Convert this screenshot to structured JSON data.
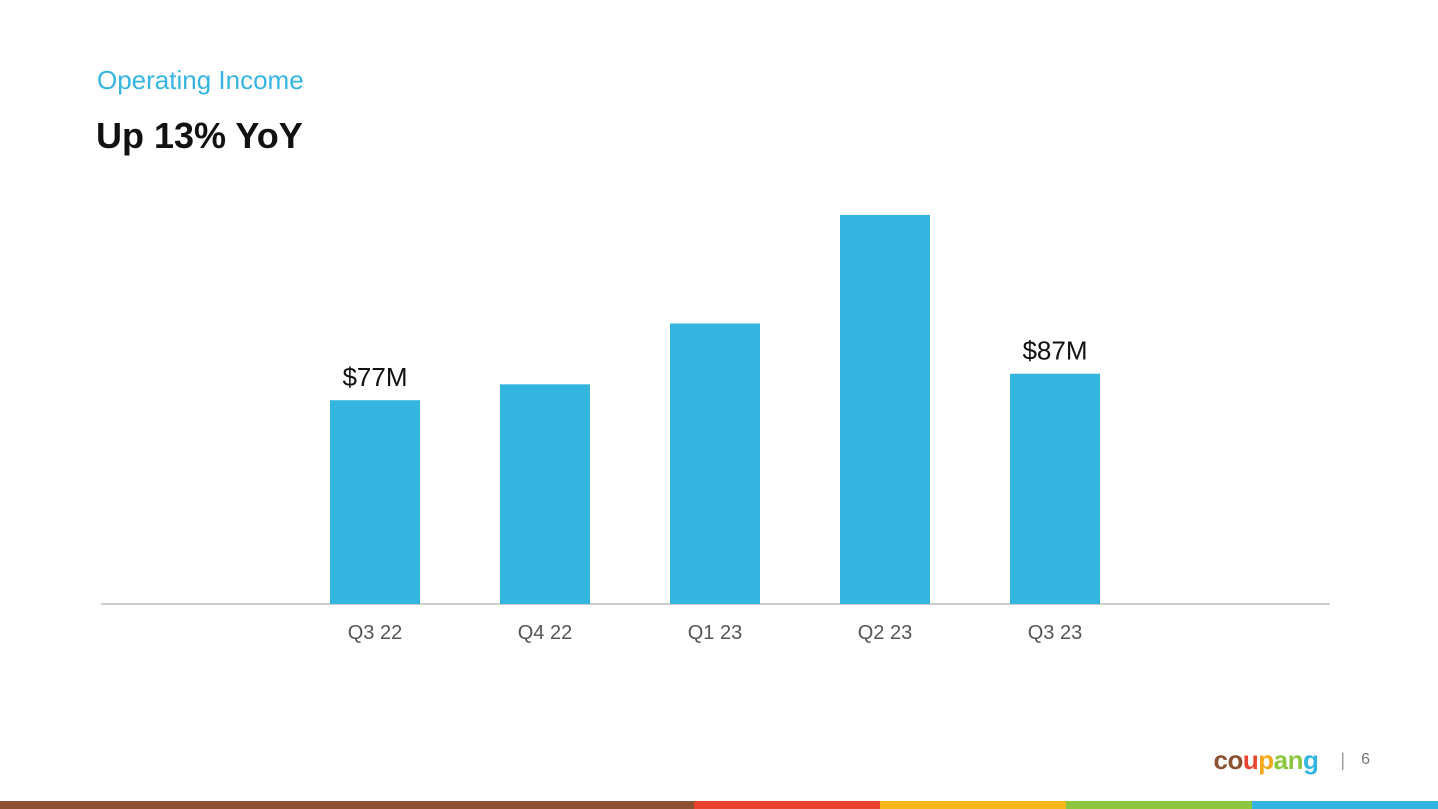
{
  "slide": {
    "eyebrow": "Operating Income",
    "headline": "Up 13% YoY",
    "page_number": "6",
    "separator": "|"
  },
  "logo": {
    "letters": [
      "c",
      "o",
      "u",
      "p",
      "a",
      "n",
      "g"
    ],
    "colors": [
      "#8a5230",
      "#8a5230",
      "#e8442f",
      "#f4a81c",
      "#8cc63f",
      "#8cc63f",
      "#33b5e0"
    ]
  },
  "stripe_colors": [
    "#8a5230",
    "#e8442f",
    "#f9b71a",
    "#8cc63f",
    "#33b5e0"
  ],
  "chart_data": {
    "type": "bar",
    "categories": [
      "Q3 22",
      "Q4 22",
      "Q1 23",
      "Q2 23",
      "Q3 23"
    ],
    "values": [
      77,
      83,
      106,
      147,
      87
    ],
    "data_labels": [
      "$77M",
      "",
      "",
      "",
      "$87M"
    ],
    "ylim": [
      0,
      150
    ],
    "bar_color": "#33b5e0",
    "grid": false
  }
}
